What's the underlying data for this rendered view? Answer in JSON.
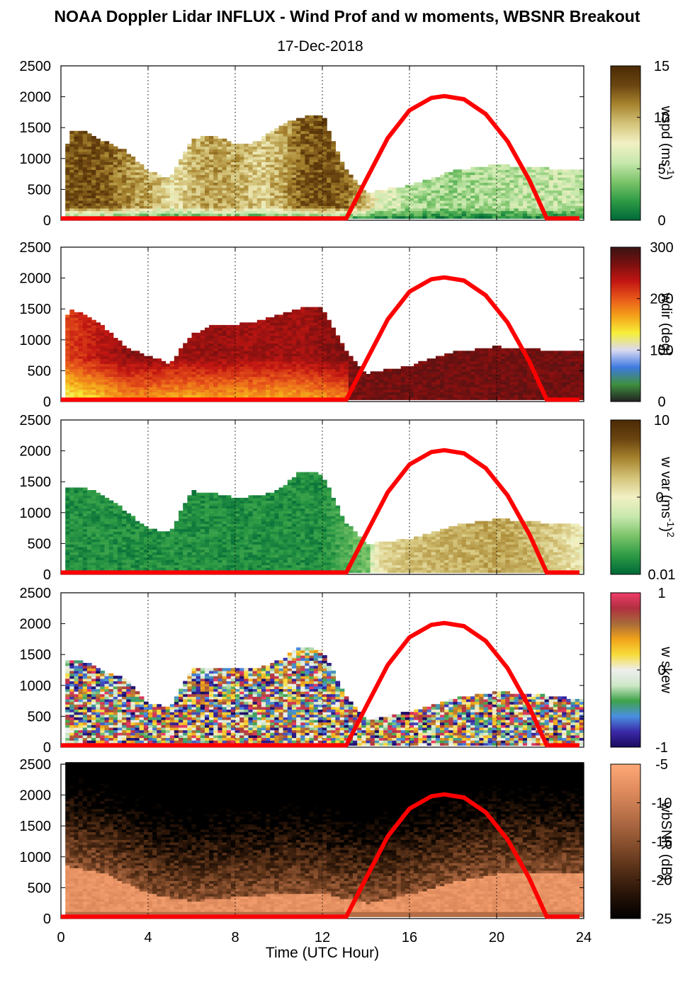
{
  "figure": {
    "title": "NOAA Doppler Lidar INFLUX - Wind Prof and w moments, WBSNR Breakout",
    "subtitle": "17-Dec-2018",
    "xlabel": "Time (UTC Hour)"
  },
  "chart_data": {
    "type": "heatmap",
    "x_ticks": [
      "0",
      "4",
      "8",
      "12",
      "16",
      "20",
      "24"
    ],
    "y_ticks": [
      "0",
      "500",
      "1000",
      "1500",
      "2000",
      "2500"
    ],
    "xlim": [
      0,
      24
    ],
    "ylim": [
      0,
      2500
    ],
    "grid": "vertical dotted lines at 4-hour intervals",
    "overlay_curve": {
      "color": "#ff0000",
      "points": [
        [
          0,
          30
        ],
        [
          13.1,
          30
        ],
        [
          14,
          650
        ],
        [
          15,
          1330
        ],
        [
          16,
          1780
        ],
        [
          17,
          1980
        ],
        [
          17.6,
          2010
        ],
        [
          18.5,
          1960
        ],
        [
          19.5,
          1720
        ],
        [
          20.5,
          1280
        ],
        [
          21.5,
          650
        ],
        [
          22.3,
          30
        ],
        [
          23.8,
          30
        ]
      ]
    },
    "panels": [
      {
        "id": "wspd",
        "colorbar_label_main": "wspd (ms",
        "colorbar_label_sup": "-1",
        "colorbar_label_tail": ")",
        "colorbar_ticks": [
          "15",
          "10",
          "5",
          "0"
        ],
        "colorbar_range": [
          0,
          15
        ],
        "colormap": [
          "#006837",
          "#2e9b45",
          "#7cc46a",
          "#c8e8ad",
          "#f2f0c4",
          "#d4c47a",
          "#a7842f",
          "#6b4510",
          "#4b2a05"
        ],
        "data_top_profile": [
          [
            0.2,
            1000
          ],
          [
            0.4,
            1430
          ],
          [
            1,
            1430
          ],
          [
            2,
            1260
          ],
          [
            3,
            1100
          ],
          [
            4,
            780
          ],
          [
            5,
            650
          ],
          [
            6,
            1300
          ],
          [
            7,
            1370
          ],
          [
            8,
            1200
          ],
          [
            9,
            1250
          ],
          [
            10,
            1500
          ],
          [
            11,
            1650
          ],
          [
            12,
            1700
          ],
          [
            13,
            850
          ],
          [
            14,
            430
          ],
          [
            16,
            540
          ],
          [
            18,
            780
          ],
          [
            20,
            880
          ],
          [
            22,
            830
          ],
          [
            23.8,
            800
          ]
        ],
        "value_profile": [
          [
            0,
            12.5
          ],
          [
            1,
            13
          ],
          [
            2,
            12.5
          ],
          [
            3,
            11
          ],
          [
            4,
            10
          ],
          [
            5,
            8
          ],
          [
            6,
            10
          ],
          [
            7,
            10.5
          ],
          [
            8,
            10
          ],
          [
            9,
            9
          ],
          [
            10,
            10
          ],
          [
            11,
            12.5
          ],
          [
            12,
            13
          ],
          [
            13,
            12
          ],
          [
            13.8,
            10
          ],
          [
            14.5,
            7
          ],
          [
            16,
            5
          ],
          [
            18,
            4.5
          ],
          [
            20,
            5
          ],
          [
            22,
            5.5
          ],
          [
            24,
            5.5
          ]
        ]
      },
      {
        "id": "wdir",
        "colorbar_label_main": "wdir (deg",
        "colorbar_label_sup": "",
        "colorbar_label_tail": ")",
        "colorbar_ticks": [
          "300",
          "200",
          "100",
          "0"
        ],
        "colorbar_range": [
          0,
          360
        ],
        "colormap": [
          "#222222",
          "#3f8f3e",
          "#3f7ae0",
          "#d9d9f2",
          "#f7ef38",
          "#f4a01a",
          "#e8571a",
          "#c21612",
          "#7a1010",
          "#3a1414"
        ],
        "data_top_profile": [
          [
            0,
            1100
          ],
          [
            0.4,
            1460
          ],
          [
            1,
            1430
          ],
          [
            2,
            1180
          ],
          [
            3,
            860
          ],
          [
            4,
            720
          ],
          [
            5,
            600
          ],
          [
            6,
            1060
          ],
          [
            7,
            1230
          ],
          [
            8,
            1230
          ],
          [
            9,
            1280
          ],
          [
            10,
            1380
          ],
          [
            11,
            1500
          ],
          [
            12,
            1500
          ],
          [
            13,
            860
          ],
          [
            14,
            440
          ],
          [
            16,
            560
          ],
          [
            18,
            780
          ],
          [
            20,
            870
          ],
          [
            22,
            820
          ],
          [
            23.8,
            800
          ]
        ],
        "value_profile": [
          [
            0,
            250
          ],
          [
            1,
            270
          ],
          [
            2,
            290
          ],
          [
            3,
            310
          ],
          [
            4,
            310
          ],
          [
            5,
            300
          ],
          [
            6,
            300
          ],
          [
            7,
            305
          ],
          [
            8,
            300
          ],
          [
            9,
            300
          ],
          [
            10,
            300
          ],
          [
            11,
            300
          ],
          [
            12,
            310
          ],
          [
            13,
            320
          ],
          [
            14,
            325
          ],
          [
            16,
            325
          ],
          [
            18,
            325
          ],
          [
            20,
            325
          ],
          [
            22,
            325
          ],
          [
            24,
            325
          ]
        ]
      },
      {
        "id": "wvar",
        "colorbar_label_main": "w var (ms",
        "colorbar_label_sup": "-1",
        "colorbar_label_tail": ")",
        "colorbar_label_sup2": "2",
        "colorbar_ticks": [
          "10",
          "0.",
          "0.01"
        ],
        "colorbar_range": [
          0.01,
          10
        ],
        "colormap": [
          "#006837",
          "#2e9b45",
          "#7cc46a",
          "#c8e8ad",
          "#f2f0c4",
          "#d4c47a",
          "#a7842f",
          "#6b4510",
          "#4b2a05"
        ],
        "data_top_profile": [
          [
            0.2,
            1400
          ],
          [
            1,
            1400
          ],
          [
            2,
            1260
          ],
          [
            3,
            1000
          ],
          [
            4,
            720
          ],
          [
            5,
            660
          ],
          [
            6,
            1330
          ],
          [
            7,
            1300
          ],
          [
            8,
            1220
          ],
          [
            9,
            1250
          ],
          [
            10,
            1350
          ],
          [
            11,
            1650
          ],
          [
            12,
            1600
          ],
          [
            13,
            860
          ],
          [
            14,
            470
          ],
          [
            16,
            560
          ],
          [
            18,
            770
          ],
          [
            20,
            880
          ],
          [
            22,
            820
          ],
          [
            23.8,
            780
          ]
        ],
        "value_profile": [
          [
            0,
            0.02
          ],
          [
            4,
            0.02
          ],
          [
            8,
            0.02
          ],
          [
            12,
            0.02
          ],
          [
            14,
            0.05
          ],
          [
            14.8,
            0.6
          ],
          [
            16,
            0.8
          ],
          [
            18,
            1.0
          ],
          [
            20,
            1.2
          ],
          [
            22,
            0.8
          ],
          [
            24,
            0.3
          ]
        ]
      },
      {
        "id": "wskew",
        "colorbar_label_main": "w skew",
        "colorbar_label_sup": "",
        "colorbar_label_tail": "",
        "colorbar_ticks": [
          "1",
          "0",
          "-1"
        ],
        "colorbar_range": [
          -1,
          1
        ],
        "colormap": [
          "#1a0a5e",
          "#3b2aa8",
          "#4a8fe0",
          "#3fa34a",
          "#cde8c8",
          "#eeeeee",
          "#f7dc3a",
          "#f0a21a",
          "#a86b3a",
          "#b03040",
          "#f03c6a"
        ],
        "data_top_profile": [
          [
            0.2,
            1380
          ],
          [
            1,
            1380
          ],
          [
            2,
            1200
          ],
          [
            3,
            1080
          ],
          [
            4,
            700
          ],
          [
            5,
            620
          ],
          [
            6,
            1260
          ],
          [
            7,
            1250
          ],
          [
            8,
            1240
          ],
          [
            9,
            1250
          ],
          [
            10,
            1380
          ],
          [
            11,
            1600
          ],
          [
            12,
            1550
          ],
          [
            13,
            850
          ],
          [
            14,
            420
          ],
          [
            16,
            550
          ],
          [
            18,
            770
          ],
          [
            20,
            880
          ],
          [
            22,
            830
          ],
          [
            23.8,
            760
          ]
        ],
        "value_profile": [
          [
            0,
            0
          ],
          [
            24,
            0
          ]
        ]
      },
      {
        "id": "wbsnr",
        "colorbar_label_main": "wbSNR (dB",
        "colorbar_label_sup": "",
        "colorbar_label_tail": ")",
        "colorbar_ticks": [
          "-5",
          "-10",
          "-15",
          "-20",
          "-25"
        ],
        "colorbar_range": [
          -25,
          -5
        ],
        "colormap": [
          "#000000",
          "#2a1508",
          "#5a3218",
          "#8c5230",
          "#b87048",
          "#e08c5e",
          "#ffa877"
        ],
        "data_top_profile": [
          [
            0.2,
            2500
          ],
          [
            23.8,
            2500
          ]
        ],
        "value_profile": [
          [
            0,
            -7
          ],
          [
            24,
            -7
          ]
        ]
      }
    ]
  }
}
